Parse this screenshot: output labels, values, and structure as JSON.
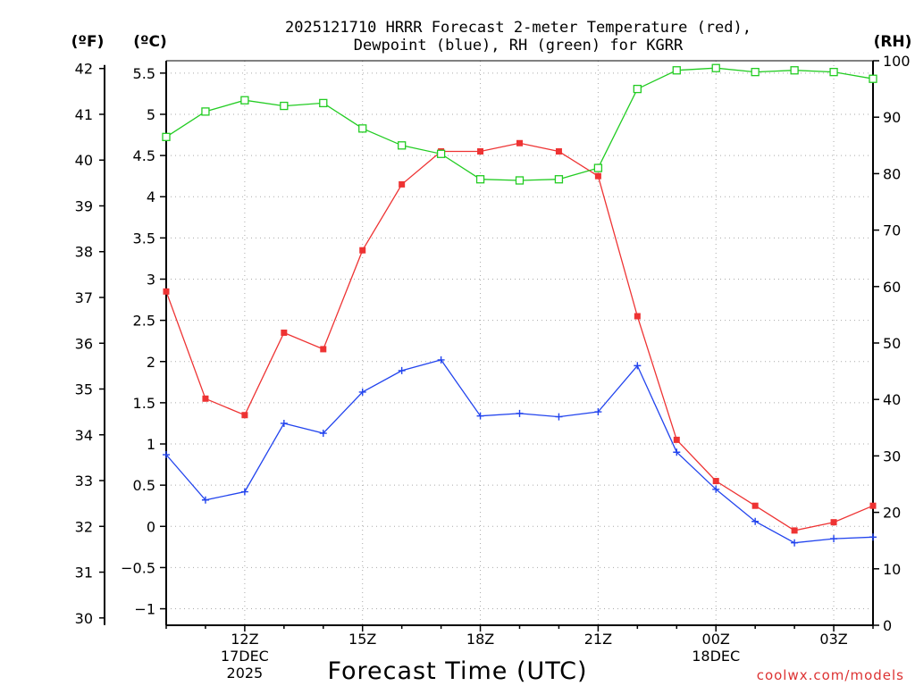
{
  "chart_data": {
    "type": "line",
    "title": "2025121710 HRRR Forecast 2-meter Temperature (red),",
    "subtitle": "Dewpoint (blue), RH (green) for KGRR",
    "xlabel": "Forecast Time (UTC)",
    "credit": "coolwx.com/models",
    "unit_labels": {
      "fahrenheit": "(ºF)",
      "celsius": "(ºC)",
      "rh": "(RH)"
    },
    "x_range": [
      10,
      28
    ],
    "celsius_range": [
      -1.2,
      5.65
    ],
    "rh_range": [
      0,
      100
    ],
    "fahrenheit_ticks": [
      30,
      31,
      32,
      33,
      34,
      35,
      36,
      37,
      38,
      39,
      40,
      41,
      42
    ],
    "celsius_ticks": [
      -1,
      -0.5,
      0,
      0.5,
      1,
      1.5,
      2,
      2.5,
      3,
      3.5,
      4,
      4.5,
      5,
      5.5
    ],
    "celsius_tick_labels": [
      "−1",
      "−0.5",
      "0",
      "0.5",
      "1",
      "1.5",
      "2",
      "2.5",
      "3",
      "3.5",
      "4",
      "4.5",
      "5",
      "5.5"
    ],
    "rh_ticks": [
      0,
      10,
      20,
      30,
      40,
      50,
      60,
      70,
      80,
      90,
      100
    ],
    "x_ticks": [
      {
        "x": 12,
        "lines": [
          "12Z",
          "17DEC",
          "2025"
        ]
      },
      {
        "x": 15,
        "lines": [
          "15Z"
        ]
      },
      {
        "x": 18,
        "lines": [
          "18Z"
        ]
      },
      {
        "x": 21,
        "lines": [
          "21Z"
        ]
      },
      {
        "x": 24,
        "lines": [
          "00Z",
          "18DEC"
        ]
      },
      {
        "x": 27,
        "lines": [
          "03Z"
        ]
      }
    ],
    "x": [
      10,
      11,
      12,
      13,
      14,
      15,
      16,
      17,
      18,
      19,
      20,
      21,
      22,
      23,
      24,
      25,
      26,
      27,
      28
    ],
    "series": [
      {
        "name": "Temperature",
        "axis": "celsius",
        "color": "#ee3333",
        "marker": "filled-square",
        "values": [
          2.85,
          1.55,
          1.35,
          2.35,
          2.15,
          3.35,
          4.15,
          4.55,
          4.55,
          4.65,
          4.55,
          4.25,
          2.55,
          1.05,
          0.55,
          0.25,
          -0.05,
          0.05,
          0.25
        ]
      },
      {
        "name": "Dewpoint",
        "axis": "celsius",
        "color": "#2244ee",
        "marker": "plus",
        "values": [
          0.87,
          0.32,
          0.42,
          1.25,
          1.13,
          1.63,
          1.89,
          2.02,
          1.34,
          1.37,
          1.33,
          1.39,
          1.95,
          0.9,
          0.45,
          0.06,
          -0.2,
          -0.15,
          -0.13
        ]
      },
      {
        "name": "RH",
        "axis": "rh",
        "color": "#22cc22",
        "marker": "open-square",
        "values": [
          86.5,
          91,
          93,
          92,
          92.5,
          88,
          85,
          83.5,
          79,
          78.8,
          79,
          81,
          95,
          98.3,
          98.7,
          98,
          98.3,
          98,
          96.8
        ]
      }
    ]
  }
}
